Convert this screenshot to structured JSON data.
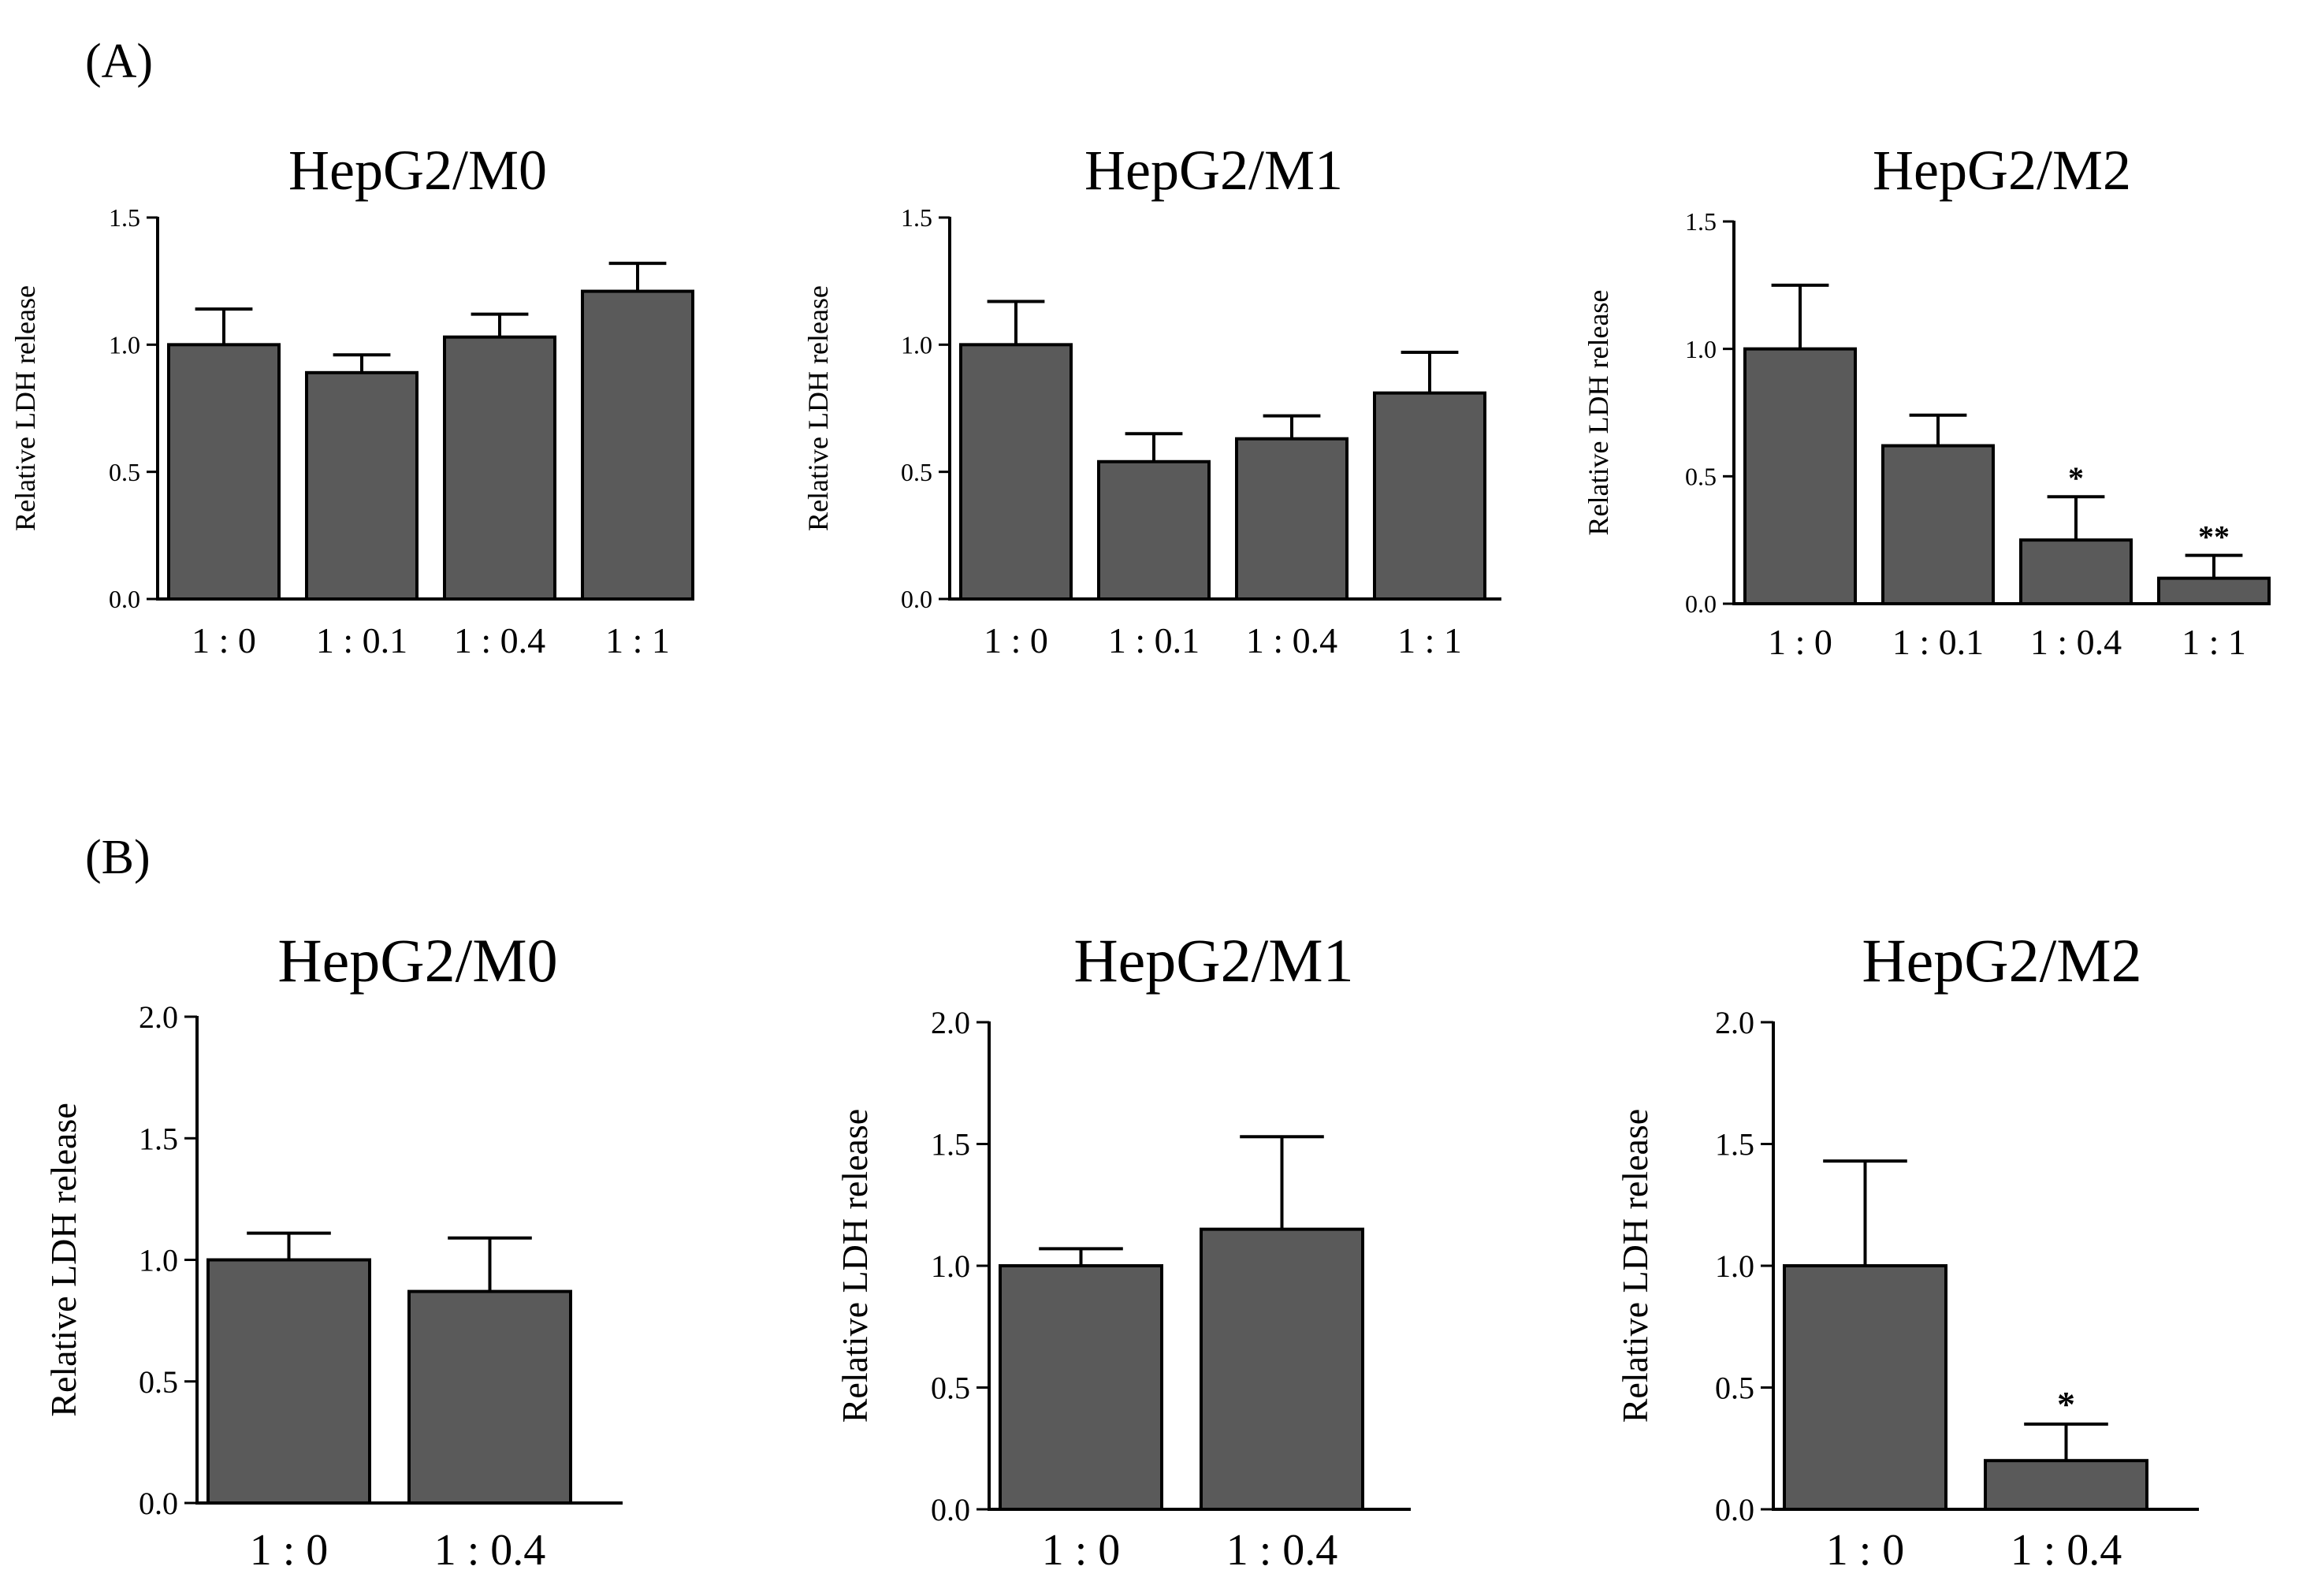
{
  "figure": {
    "panel_labels": [
      "(A)",
      "(B)"
    ],
    "colors": {
      "bar_fill": "#5a5a5a",
      "bar_edge": "#000000",
      "axis": "#000000",
      "text": "#000000"
    }
  },
  "chart_data": [
    {
      "panel": "(A)",
      "type": "bar",
      "title": "HepG2/M0",
      "xlabel": "",
      "ylabel": "Relative LDH release",
      "categories": [
        "1 : 0",
        "1 : 0.1",
        "1 : 0.4",
        "1 : 1"
      ],
      "values": [
        1.0,
        0.89,
        1.03,
        1.21
      ],
      "errors": [
        0.14,
        0.07,
        0.09,
        0.11
      ],
      "significance": [
        "",
        "",
        "",
        ""
      ],
      "ylim": [
        0,
        1.5
      ],
      "yticks": [
        "0.0",
        "0.5",
        "1.0",
        "1.5"
      ],
      "grid": false,
      "legend": "none"
    },
    {
      "panel": "(A)",
      "type": "bar",
      "title": "HepG2/M1",
      "xlabel": "",
      "ylabel": "Relative LDH release",
      "categories": [
        "1 : 0",
        "1 : 0.1",
        "1 : 0.4",
        "1 : 1"
      ],
      "values": [
        1.0,
        0.54,
        0.63,
        0.81
      ],
      "errors": [
        0.17,
        0.11,
        0.09,
        0.16
      ],
      "significance": [
        "",
        "",
        "",
        ""
      ],
      "ylim": [
        0,
        1.5
      ],
      "yticks": [
        "0.0",
        "0.5",
        "1.0",
        "1.5"
      ],
      "grid": false,
      "legend": "none"
    },
    {
      "panel": "(A)",
      "type": "bar",
      "title": "HepG2/M2",
      "xlabel": "",
      "ylabel": "Relative LDH release",
      "categories": [
        "1 : 0",
        "1 : 0.1",
        "1 : 0.4",
        "1 : 1"
      ],
      "values": [
        1.0,
        0.62,
        0.25,
        0.1
      ],
      "errors": [
        0.25,
        0.12,
        0.17,
        0.09
      ],
      "significance": [
        "",
        "",
        "*",
        "**"
      ],
      "ylim": [
        0,
        1.5
      ],
      "yticks": [
        "0.0",
        "0.5",
        "1.0",
        "1.5"
      ],
      "grid": false,
      "legend": "none"
    },
    {
      "panel": "(B)",
      "type": "bar",
      "title": "HepG2/M0",
      "xlabel": "",
      "ylabel": "Relative LDH release",
      "categories": [
        "1 : 0",
        "1 : 0.4"
      ],
      "values": [
        1.0,
        0.87
      ],
      "errors": [
        0.11,
        0.22
      ],
      "significance": [
        "",
        ""
      ],
      "ylim": [
        0,
        2.0
      ],
      "yticks": [
        "0.0",
        "0.5",
        "1.0",
        "1.5",
        "2.0"
      ],
      "grid": false,
      "legend": "none"
    },
    {
      "panel": "(B)",
      "type": "bar",
      "title": "HepG2/M1",
      "xlabel": "",
      "ylabel": "Relative LDH release",
      "categories": [
        "1 : 0",
        "1 : 0.4"
      ],
      "values": [
        1.0,
        1.15
      ],
      "errors": [
        0.07,
        0.38
      ],
      "significance": [
        "",
        ""
      ],
      "ylim": [
        0,
        2.0
      ],
      "yticks": [
        "0.0",
        "0.5",
        "1.0",
        "1.5",
        "2.0"
      ],
      "grid": false,
      "legend": "none"
    },
    {
      "panel": "(B)",
      "type": "bar",
      "title": "HepG2/M2",
      "xlabel": "",
      "ylabel": "Relative LDH release",
      "categories": [
        "1 : 0",
        "1 : 0.4"
      ],
      "values": [
        1.0,
        0.2
      ],
      "errors": [
        0.43,
        0.15
      ],
      "significance": [
        "",
        "*"
      ],
      "ylim": [
        0,
        2.0
      ],
      "yticks": [
        "0.0",
        "0.5",
        "1.0",
        "1.5",
        "2.0"
      ],
      "grid": false,
      "legend": "none"
    }
  ]
}
